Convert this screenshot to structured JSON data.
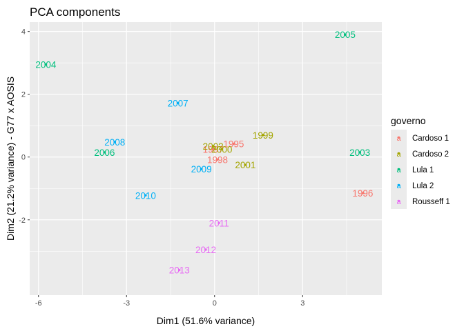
{
  "chart_data": {
    "type": "scatter",
    "title": "PCA components",
    "xlabel": "Dim1 (51.6% variance)",
    "ylabel": "Dim2 (21.2% variance) - G77 x AOSIS",
    "xlim": [
      -6.3,
      5.7
    ],
    "ylim": [
      -4.4,
      4.3
    ],
    "xticks": [
      -6,
      -3,
      0,
      3
    ],
    "yticks": [
      -2,
      0,
      2,
      4
    ],
    "grid": true,
    "legend_title": "governo",
    "legend_position": "right",
    "groups": [
      {
        "name": "Cardoso 1",
        "color": "#F8766D"
      },
      {
        "name": "Cardoso 2",
        "color": "#A3A500"
      },
      {
        "name": "Lula 1",
        "color": "#00BF7D"
      },
      {
        "name": "Lula 2",
        "color": "#00B0F6"
      },
      {
        "name": "Rousseff 1",
        "color": "#E76BF3"
      }
    ],
    "points": [
      {
        "label": "1995",
        "x": 0.65,
        "y": 0.42,
        "group": "Cardoso 1"
      },
      {
        "label": "1996",
        "x": 5.05,
        "y": -1.15,
        "group": "Cardoso 1"
      },
      {
        "label": "1997",
        "x": -0.05,
        "y": 0.25,
        "group": "Cardoso 1"
      },
      {
        "label": "1998",
        "x": 0.1,
        "y": -0.08,
        "group": "Cardoso 1"
      },
      {
        "label": "1999",
        "x": 1.65,
        "y": 0.7,
        "group": "Cardoso 2"
      },
      {
        "label": "2000",
        "x": 0.25,
        "y": 0.25,
        "group": "Cardoso 2"
      },
      {
        "label": "2001",
        "x": 1.05,
        "y": -0.25,
        "group": "Cardoso 2"
      },
      {
        "label": "2002",
        "x": -0.05,
        "y": 0.35,
        "group": "Cardoso 2"
      },
      {
        "label": "2003",
        "x": 4.95,
        "y": 0.15,
        "group": "Lula 1"
      },
      {
        "label": "2004",
        "x": -5.75,
        "y": 2.95,
        "group": "Lula 1"
      },
      {
        "label": "2005",
        "x": 4.45,
        "y": 3.9,
        "group": "Lula 1"
      },
      {
        "label": "2006",
        "x": -3.75,
        "y": 0.15,
        "group": "Lula 1"
      },
      {
        "label": "2007",
        "x": -1.25,
        "y": 1.72,
        "group": "Lula 2"
      },
      {
        "label": "2008",
        "x": -3.4,
        "y": 0.48,
        "group": "Lula 2"
      },
      {
        "label": "2009",
        "x": -0.45,
        "y": -0.38,
        "group": "Lula 2"
      },
      {
        "label": "2010",
        "x": -2.35,
        "y": -1.22,
        "group": "Lula 2"
      },
      {
        "label": "2011",
        "x": 0.15,
        "y": -2.1,
        "group": "Rousseff 1"
      },
      {
        "label": "2012",
        "x": -0.3,
        "y": -2.95,
        "group": "Rousseff 1"
      },
      {
        "label": "2013",
        "x": -1.2,
        "y": -3.6,
        "group": "Rousseff 1"
      }
    ]
  }
}
